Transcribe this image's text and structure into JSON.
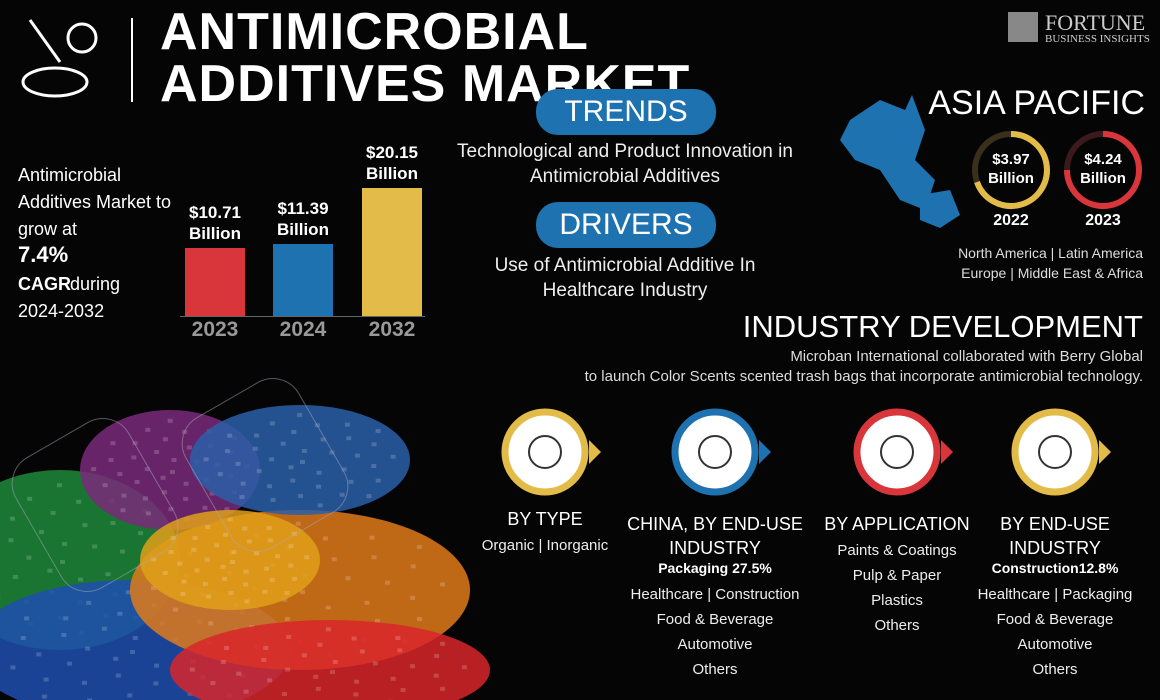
{
  "header": {
    "title": "ANTIMICROBIAL ADDITIVES MARKET",
    "brand": "FORTUNE",
    "brand_sub": "BUSINESS INSIGHTS"
  },
  "growth": {
    "intro": "Antimicrobial Additives Market to grow at",
    "cagr": "7.4%",
    "cagr_label": "CAGR",
    "period_text": "during",
    "period": "2024-2032"
  },
  "chart_data": {
    "type": "bar",
    "categories": [
      "2023",
      "2024",
      "2032"
    ],
    "values": [
      10.71,
      11.39,
      20.15
    ],
    "value_labels": [
      "$10.71 Billion",
      "$11.39 Billion",
      "$20.15 Billion"
    ],
    "colors": [
      "#d8363a",
      "#1f72b0",
      "#e3bb48"
    ]
  },
  "trends": {
    "title": "TRENDS",
    "text": "Technological and Product Innovation in Antimicrobial Additives"
  },
  "drivers": {
    "title": "DRIVERS",
    "text": "Use of Antimicrobial Additive In Healthcare Industry"
  },
  "region": {
    "title": "ASIA PACIFIC",
    "stats": [
      {
        "value": "$3.97 Billion",
        "year": "2022"
      },
      {
        "value": "$4.24 Billion",
        "year": "2023"
      }
    ],
    "others": [
      "North America | Latin America",
      "Europe | Middle East & Africa"
    ]
  },
  "development": {
    "title": "INDUSTRY DEVELOPMENT",
    "lines": [
      "Microban International collaborated with Berry Global",
      "to launch Color Scents scented trash bags that incorporate antimicrobial technology."
    ]
  },
  "segments": [
    {
      "title": "BY TYPE",
      "items": [
        "Organic | Inorganic"
      ]
    },
    {
      "title": "CHINA, BY END-USE INDUSTRY",
      "highlight": "Packaging 27.5%",
      "items": [
        "Healthcare | Construction",
        "Food & Beverage",
        "Automotive",
        "Others"
      ]
    },
    {
      "title": "BY APPLICATION",
      "items": [
        "Paints & Coatings",
        "Pulp & Paper",
        "Plastics",
        "Others"
      ]
    },
    {
      "title": "BY END-USE INDUSTRY",
      "highlight": "Construction12.8%",
      "items": [
        "Healthcare | Packaging",
        "Food & Beverage",
        "Automotive",
        "Others"
      ]
    }
  ]
}
